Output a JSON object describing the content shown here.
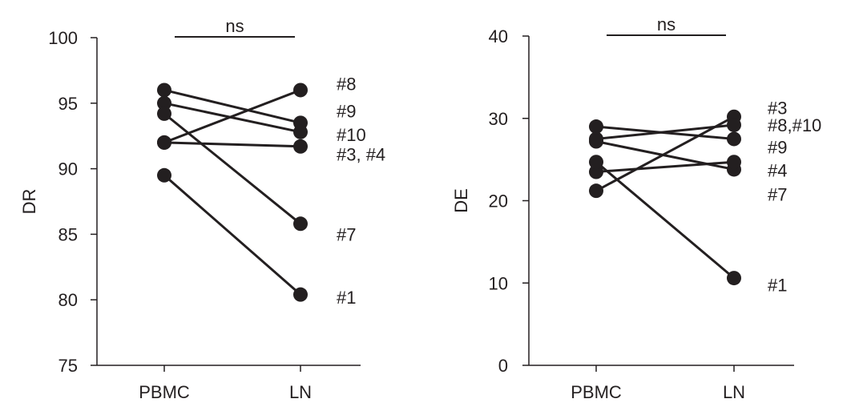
{
  "chart_data": [
    {
      "type": "line",
      "ylabel": "DR",
      "ylim": [
        75,
        100
      ],
      "yticks": [
        "75",
        "80",
        "85",
        "90",
        "95",
        "100"
      ],
      "categories": [
        "PBMC",
        "LN"
      ],
      "significance": "ns",
      "series": [
        {
          "values": [
            96.0,
            93.5
          ]
        },
        {
          "values": [
            95.0,
            92.8
          ]
        },
        {
          "values": [
            94.2,
            85.8
          ]
        },
        {
          "values": [
            92.0,
            96.0
          ]
        },
        {
          "values": [
            92.0,
            91.7
          ]
        },
        {
          "values": [
            89.5,
            80.4
          ]
        }
      ],
      "annotations": [
        {
          "text": "#8",
          "y": 96.5
        },
        {
          "text": "#9",
          "y": 94.4
        },
        {
          "text": "#10",
          "y": 92.6
        },
        {
          "text": "#3, #4",
          "y": 91.1
        },
        {
          "text": "#7",
          "y": 85.0
        },
        {
          "text": "#1",
          "y": 80.2
        }
      ]
    },
    {
      "type": "line",
      "ylabel": "DE",
      "ylim": [
        0,
        40
      ],
      "yticks": [
        "0",
        "10",
        "20",
        "30",
        "40"
      ],
      "categories": [
        "PBMC",
        "LN"
      ],
      "significance": "ns",
      "series": [
        {
          "values": [
            21.2,
            30.2
          ]
        },
        {
          "values": [
            29.0,
            27.5
          ]
        },
        {
          "values": [
            27.5,
            29.2
          ]
        },
        {
          "values": [
            27.2,
            23.8
          ]
        },
        {
          "values": [
            23.5,
            24.7
          ]
        },
        {
          "values": [
            24.7,
            10.6
          ]
        }
      ],
      "annotations": [
        {
          "text": "#3",
          "y": 31.3
        },
        {
          "text": "#8,#10",
          "y": 29.2
        },
        {
          "text": "#9",
          "y": 26.5
        },
        {
          "text": "#4",
          "y": 23.7
        },
        {
          "text": "#7",
          "y": 20.8
        },
        {
          "text": "#1",
          "y": 9.8
        }
      ]
    }
  ]
}
